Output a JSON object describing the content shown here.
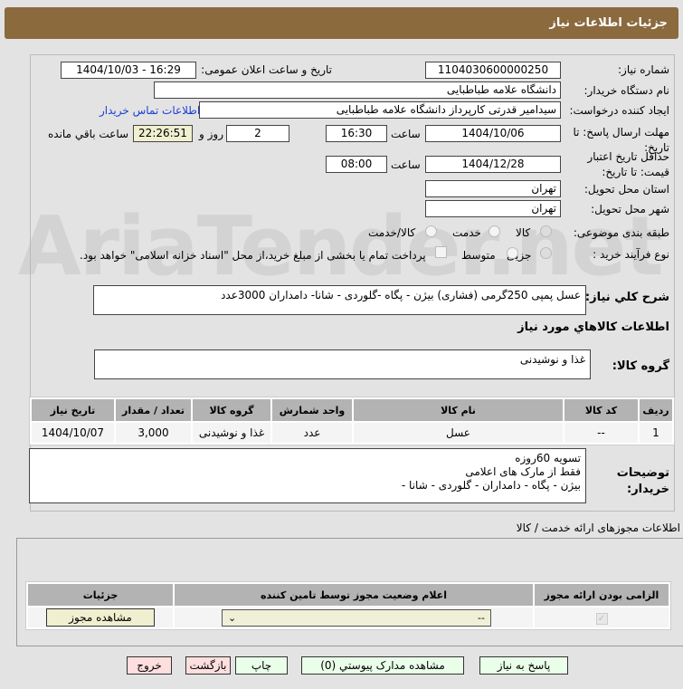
{
  "header": {
    "title": "جزئیات اطلاعات نیاز"
  },
  "form": {
    "need_number_label": "شماره نیاز:",
    "need_number": "1104030600000250",
    "announce_label": "تاریخ و ساعت اعلان عمومی:",
    "announce_value": "1404/10/03 - 16:29",
    "buyer_label": "نام دستگاه خریدار:",
    "buyer": "دانشگاه علامه طباطبایی",
    "creator_label": "ایجاد کننده درخواست:",
    "creator": "سیدامیر قدرتی کارپرداز دانشگاه علامه طباطبایی",
    "contact_link": "اطلاعات تماس خریدار",
    "deadline_label": "مهلت ارسال پاسخ: تا تاریخ:",
    "deadline_date": "1404/10/06",
    "time_label": "ساعت",
    "deadline_time": "16:30",
    "days": "2",
    "days_label": "روز و",
    "remaining": "22:26:51",
    "remaining_label": "ساعت باقي مانده",
    "validity_label": "حداقل تاریخ اعتبار قیمت: تا تاریخ:",
    "validity_date": "1404/12/28",
    "validity_time": "08:00",
    "province_label": "استان محل تحویل:",
    "province": "تهران",
    "city_label": "شهر محل تحویل:",
    "city": "تهران",
    "category_label": "طبقه بندی موضوعی:",
    "category_options": [
      "کالا",
      "خدمت",
      "کالا/خدمت"
    ],
    "category_selected": "کالا",
    "process_label": "نوع فرآیند خرید :",
    "process_options": [
      "جزیی",
      "متوسط"
    ],
    "treasury_note": "پرداخت تمام یا بخشی از مبلغ خرید،از محل \"اسناد خزانه اسلامی\" خواهد بود.",
    "summary_label": "شرح کلي نیاز:",
    "summary": "عسل پمپی 250گرمی (فشاری) بیژن - پگاه -گلوردی - شانا- دامداران 3000عدد",
    "goods_heading": "اطلاعات کالاهاي مورد نیاز",
    "group_label": "گروه کالا:",
    "group": "غذا و نوشیدنی",
    "notes_label": "توضیحات خریدار:",
    "notes": [
      "تسویه 60روزه",
      "فقط از مارک های اعلامی",
      "بیژن - پگاه - دامداران - گلوردی - شانا -"
    ]
  },
  "goods_table": {
    "headers": [
      "ردیف",
      "کد کالا",
      "نام کالا",
      "واحد شمارش",
      "گروه کالا",
      "تعداد / مقدار",
      "تاریخ نیاز"
    ],
    "rows": [
      [
        "1",
        "--",
        "عسل",
        "عدد",
        "غذا و نوشیدنی",
        "3,000",
        "1404/10/07"
      ]
    ]
  },
  "license": {
    "heading": "اطلاعات مجوزهای ارائه خدمت / کالا",
    "headers": [
      "الزامی بودن ارائه مجوز",
      "اعلام وضعیت مجوز توسط تامین کننده",
      "جزئیات"
    ],
    "select_value": "--",
    "view_button": "مشاهده مجوز",
    "required_checked": true
  },
  "buttons": {
    "reply": "پاسخ به نیاز",
    "attachments": "مشاهده مدارک پیوستي (0)",
    "print": "چاپ",
    "back": "بازگشت",
    "exit": "خروج"
  },
  "watermark": "AriaTender.net",
  "colors": {
    "header": "#8b6a3e",
    "remaining_bg": "#f0f0d0",
    "button": "#eaffea",
    "button_alt": "#ffdede"
  }
}
